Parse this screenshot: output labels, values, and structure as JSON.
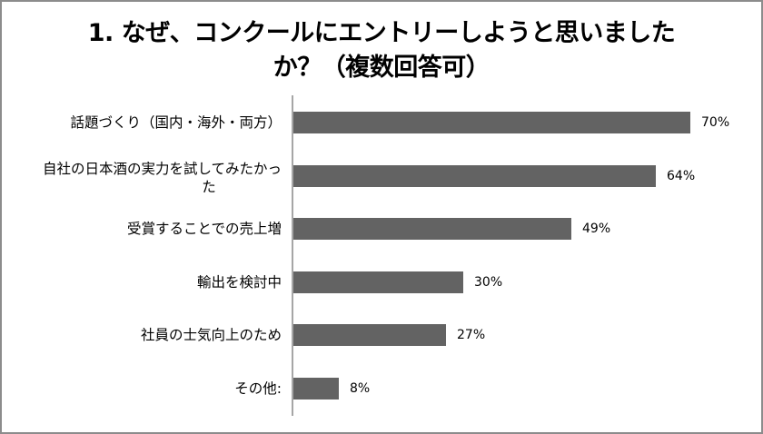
{
  "title": {
    "line1": "1.  なぜ、コンクールにエントリーしようと思いました",
    "line2": "か？（複数回答可）"
  },
  "colors": {
    "bar": "#636363",
    "axis": "#a6a6a6",
    "frame": "#8c8c8c"
  },
  "chart_data": {
    "type": "bar",
    "orientation": "horizontal",
    "title": "1. なぜ、コンクールにエントリーしようと思いましたか？（複数回答可）",
    "categories": [
      "話題づくり（国内・海外・両方）",
      "自社の日本酒の実力を試してみたかった",
      "受賞することでの売上増",
      "輸出を検討中",
      "社員の士気向上のため",
      "その他:"
    ],
    "values": [
      70,
      64,
      49,
      30,
      27,
      8
    ],
    "value_labels": [
      "70%",
      "64%",
      "49%",
      "30%",
      "27%",
      "8%"
    ],
    "unit": "%",
    "xlabel": "",
    "ylabel": "",
    "xlim": [
      0,
      100
    ],
    "grid": false,
    "legend": "none"
  },
  "rows": [
    {
      "label_line1": "話題づくり（国内・海外・両方）",
      "label_line2": "",
      "value": 70,
      "value_label": "70%"
    },
    {
      "label_line1": "自社の日本酒の実力を試してみたかっ",
      "label_line2": "た",
      "value": 64,
      "value_label": "64%"
    },
    {
      "label_line1": "受賞することでの売上増",
      "label_line2": "",
      "value": 49,
      "value_label": "49%"
    },
    {
      "label_line1": "輸出を検討中",
      "label_line2": "",
      "value": 30,
      "value_label": "30%"
    },
    {
      "label_line1": "社員の士気向上のため",
      "label_line2": "",
      "value": 27,
      "value_label": "27%"
    },
    {
      "label_line1": "その他:",
      "label_line2": "",
      "value": 8,
      "value_label": "8%"
    }
  ]
}
